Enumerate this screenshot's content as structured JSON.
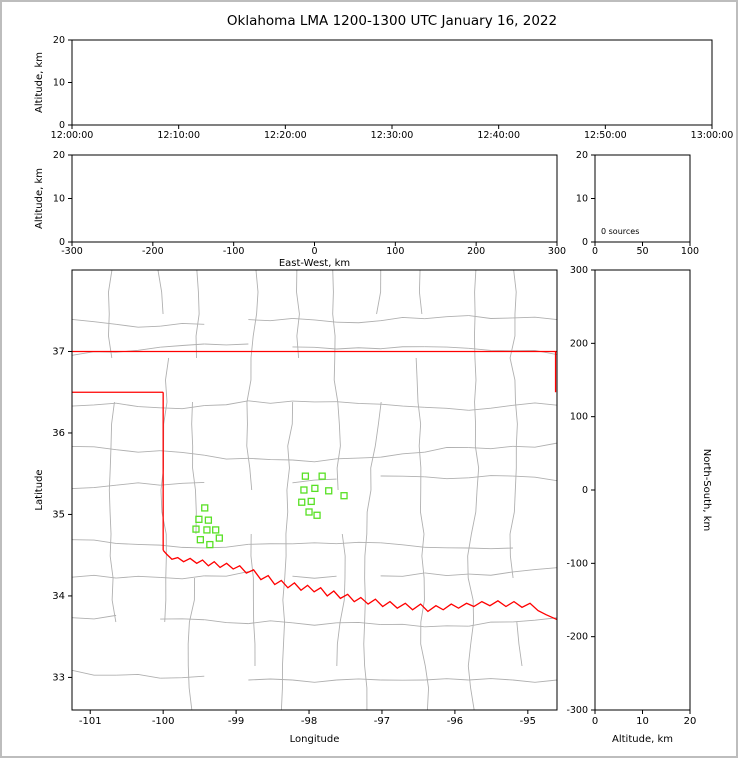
{
  "chart_data": {
    "type": "scatter",
    "title": "Oklahoma LMA 1200-1300 UTC January 16, 2022",
    "colors": {
      "state_border": "#ff0000",
      "county_lines": "#b0b0b0",
      "station": "#58e024",
      "axis": "#000000"
    },
    "panels": {
      "time_height": {
        "ylabel": "Altitude, km",
        "ylim": [
          0,
          20
        ],
        "yticks": [
          0,
          10,
          20
        ],
        "xtick_labels": [
          "12:00:00",
          "12:10:00",
          "12:20:00",
          "12:30:00",
          "12:40:00",
          "12:50:00",
          "13:00:00"
        ],
        "points": []
      },
      "ew_height": {
        "xlabel": "East-West, km",
        "ylabel": "Altitude, km",
        "xlim": [
          -300,
          300
        ],
        "xticks": [
          -300,
          -200,
          -100,
          0,
          100,
          200,
          300
        ],
        "ylim": [
          0,
          20
        ],
        "yticks": [
          0,
          10,
          20
        ],
        "points": []
      },
      "source_histogram": {
        "annotation": "0 sources",
        "xlim": [
          0,
          100
        ],
        "xticks": [
          0,
          50,
          100
        ],
        "ylim": [
          0,
          20
        ],
        "yticks": [
          0,
          10,
          20
        ],
        "points": []
      },
      "map": {
        "xlabel": "Longitude",
        "ylabel": "Latitude",
        "xlim": [
          -101.25,
          -94.6
        ],
        "xticks": [
          -101,
          -100,
          -99,
          -98,
          -97,
          -96,
          -95
        ],
        "ylim": [
          32.6,
          38.0
        ],
        "yticks": [
          33,
          34,
          35,
          36,
          37
        ],
        "stations": [
          [
            -98.05,
            35.47
          ],
          [
            -97.82,
            35.47
          ],
          [
            -98.07,
            35.3
          ],
          [
            -97.92,
            35.32
          ],
          [
            -97.73,
            35.29
          ],
          [
            -98.1,
            35.15
          ],
          [
            -97.97,
            35.16
          ],
          [
            -98.0,
            35.03
          ],
          [
            -97.89,
            34.99
          ],
          [
            -97.52,
            35.23
          ],
          [
            -99.43,
            35.08
          ],
          [
            -99.51,
            34.94
          ],
          [
            -99.38,
            34.93
          ],
          [
            -99.55,
            34.82
          ],
          [
            -99.4,
            34.81
          ],
          [
            -99.28,
            34.81
          ],
          [
            -99.49,
            34.69
          ],
          [
            -99.36,
            34.63
          ],
          [
            -99.23,
            34.71
          ]
        ],
        "border_segments": [
          [
            [
              -101.25,
              37.0
            ],
            [
              -94.6,
              37.0
            ]
          ],
          [
            [
              -94.62,
              37.0
            ],
            [
              -94.62,
              36.5
            ]
          ],
          [
            [
              -101.25,
              36.5
            ],
            [
              -100.0,
              36.5
            ]
          ],
          [
            [
              -100.0,
              36.5
            ],
            [
              -100.0,
              34.56
            ]
          ],
          [
            [
              -100.0,
              34.56
            ],
            [
              -99.95,
              34.51
            ],
            [
              -99.88,
              34.45
            ],
            [
              -99.8,
              34.47
            ],
            [
              -99.72,
              34.42
            ],
            [
              -99.63,
              34.46
            ],
            [
              -99.54,
              34.4
            ],
            [
              -99.46,
              34.44
            ],
            [
              -99.38,
              34.37
            ],
            [
              -99.3,
              34.42
            ],
            [
              -99.22,
              34.35
            ],
            [
              -99.13,
              34.4
            ],
            [
              -99.04,
              34.33
            ],
            [
              -98.95,
              34.37
            ],
            [
              -98.86,
              34.28
            ],
            [
              -98.76,
              34.32
            ],
            [
              -98.66,
              34.2
            ],
            [
              -98.56,
              34.25
            ],
            [
              -98.47,
              34.14
            ],
            [
              -98.38,
              34.19
            ],
            [
              -98.29,
              34.1
            ],
            [
              -98.2,
              34.16
            ],
            [
              -98.11,
              34.07
            ],
            [
              -98.02,
              34.13
            ],
            [
              -97.93,
              34.05
            ],
            [
              -97.84,
              34.1
            ],
            [
              -97.75,
              34.0
            ],
            [
              -97.66,
              34.06
            ],
            [
              -97.57,
              33.97
            ],
            [
              -97.47,
              34.02
            ],
            [
              -97.38,
              33.93
            ],
            [
              -97.29,
              33.98
            ],
            [
              -97.19,
              33.9
            ],
            [
              -97.09,
              33.96
            ],
            [
              -96.99,
              33.87
            ],
            [
              -96.89,
              33.93
            ],
            [
              -96.79,
              33.85
            ],
            [
              -96.68,
              33.91
            ],
            [
              -96.58,
              33.83
            ],
            [
              -96.47,
              33.9
            ],
            [
              -96.37,
              33.81
            ],
            [
              -96.26,
              33.88
            ],
            [
              -96.16,
              33.83
            ],
            [
              -96.05,
              33.9
            ],
            [
              -95.95,
              33.85
            ],
            [
              -95.84,
              33.91
            ],
            [
              -95.74,
              33.87
            ],
            [
              -95.63,
              33.93
            ],
            [
              -95.52,
              33.88
            ],
            [
              -95.41,
              33.94
            ],
            [
              -95.3,
              33.87
            ],
            [
              -95.19,
              33.93
            ],
            [
              -95.08,
              33.86
            ],
            [
              -94.97,
              33.91
            ],
            [
              -94.86,
              33.82
            ],
            [
              -94.75,
              33.77
            ],
            [
              -94.6,
              33.71
            ]
          ]
        ]
      },
      "ns_height": {
        "xlabel": "Altitude, km",
        "ylabel": "North-South, km",
        "xlim": [
          0,
          20
        ],
        "xticks": [
          0,
          10,
          20
        ],
        "ylim": [
          -300,
          300
        ],
        "yticks": [
          -300,
          -200,
          -100,
          0,
          100,
          200,
          300
        ],
        "points": []
      }
    }
  }
}
